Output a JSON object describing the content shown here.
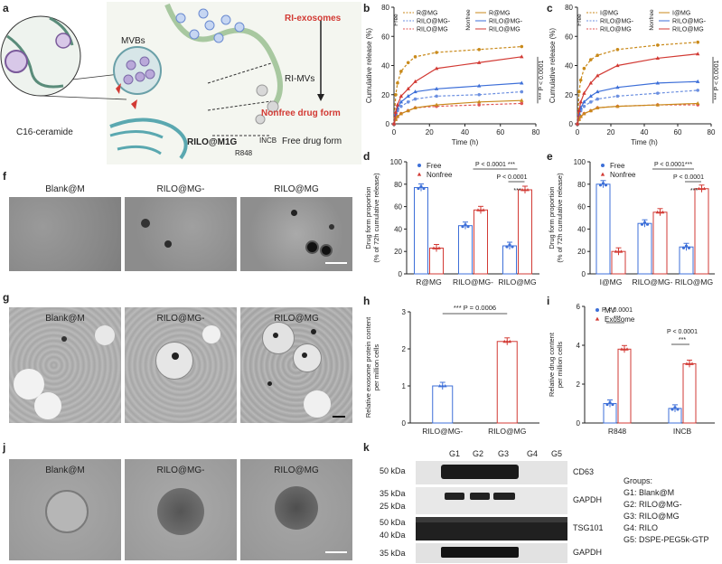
{
  "panel_letters": {
    "a": "a",
    "b": "b",
    "c": "c",
    "d": "d",
    "e": "e",
    "f": "f",
    "g": "g",
    "h": "h",
    "i": "i",
    "j": "j",
    "k": "k"
  },
  "schematic": {
    "c16": "C16-ceramide",
    "mvbs": "MVBs",
    "ri_exosomes": "RI-exosomes",
    "ri_mvs": "RI-MVs",
    "nonfree": "Nonfree drug form",
    "free": "Free drug form",
    "rilo": "RILO@M1G",
    "incb": "INCB",
    "r848": "R848"
  },
  "em": {
    "labels": [
      "Blank@M",
      "RILO@MG-",
      "RILO@MG"
    ]
  },
  "wb": {
    "lanes": [
      "G1",
      "G2",
      "G3",
      "G4",
      "G5"
    ],
    "blots": [
      {
        "name": "CD63",
        "markers": [
          "50 kDa"
        ]
      },
      {
        "name": "GAPDH",
        "markers": [
          "35 kDa",
          "25 kDa"
        ]
      },
      {
        "name": "TSG101",
        "markers": [
          "50 kDa",
          "40 kDa"
        ]
      },
      {
        "name": "GAPDH",
        "markers": [
          "35 kDa"
        ]
      }
    ],
    "groups_title": "Groups:",
    "groups": [
      "G1: Blank@M",
      "G2: RILO@MG-",
      "G3: RILO@MG",
      "G4: RILO",
      "G5: DSPE-PEG5k-GTP"
    ]
  },
  "colors": {
    "red": "#d23a34",
    "blue": "#3d6fd8",
    "orange": "#c98a1b",
    "lightblue": "#6b8fe0",
    "pink": "#e05555"
  },
  "chart_data": [
    {
      "id": "b",
      "type": "line",
      "xlabel": "Time (h)",
      "ylabel": "Cumulative release (%)",
      "xlim": [
        0,
        80
      ],
      "ylim": [
        0,
        80
      ],
      "xticks": [
        0,
        20,
        40,
        60,
        80
      ],
      "yticks": [
        0,
        20,
        40,
        60,
        80
      ],
      "x": [
        0,
        1,
        2,
        4,
        8,
        12,
        24,
        48,
        72
      ],
      "legend_groups": [
        "Free",
        "Nonfree"
      ],
      "annotation": "*** P < 0.0001",
      "series": [
        {
          "name": "R@MG",
          "group": "Free",
          "style": "dash",
          "color": "#c98a1b",
          "values": [
            0,
            20,
            28,
            36,
            42,
            46,
            49,
            51,
            53
          ]
        },
        {
          "name": "RILO@MG-",
          "group": "Free",
          "style": "dash",
          "color": "#6b8fe0",
          "values": [
            0,
            6,
            9,
            12,
            15,
            17,
            19,
            20,
            22
          ]
        },
        {
          "name": "RILO@MG",
          "group": "Free",
          "style": "dash",
          "color": "#e05555",
          "values": [
            0,
            3,
            5,
            7,
            9,
            11,
            12,
            13,
            14
          ]
        },
        {
          "name": "R@MG",
          "group": "Nonfree",
          "style": "solid",
          "color": "#c98a1b",
          "values": [
            0,
            3,
            5,
            7,
            9,
            11,
            13,
            15,
            16
          ]
        },
        {
          "name": "RILO@MG-",
          "group": "Nonfree",
          "style": "solid",
          "color": "#3d6fd8",
          "values": [
            0,
            7,
            11,
            15,
            19,
            22,
            24,
            26,
            28
          ]
        },
        {
          "name": "RILO@MG",
          "group": "Nonfree",
          "style": "solid",
          "color": "#d23a34",
          "values": [
            0,
            8,
            13,
            19,
            24,
            29,
            38,
            42,
            46
          ]
        }
      ]
    },
    {
      "id": "c",
      "type": "line",
      "xlabel": "Time (h)",
      "ylabel": "Cumulative release (%)",
      "xlim": [
        0,
        80
      ],
      "ylim": [
        0,
        80
      ],
      "xticks": [
        0,
        20,
        40,
        60,
        80
      ],
      "yticks": [
        0,
        20,
        40,
        60,
        80
      ],
      "x": [
        0,
        1,
        2,
        4,
        8,
        12,
        24,
        48,
        72
      ],
      "legend_groups": [
        "Free",
        "Nonfree"
      ],
      "annotation": "*** P < 0.0001",
      "series": [
        {
          "name": "I@MG",
          "group": "Free",
          "style": "dash",
          "color": "#c98a1b",
          "values": [
            0,
            22,
            30,
            38,
            44,
            47,
            51,
            54,
            56
          ]
        },
        {
          "name": "RILO@MG-",
          "group": "Free",
          "style": "dash",
          "color": "#6b8fe0",
          "values": [
            0,
            6,
            9,
            12,
            15,
            17,
            19,
            21,
            23
          ]
        },
        {
          "name": "RILO@MG",
          "group": "Free",
          "style": "dash",
          "color": "#e05555",
          "values": [
            0,
            3,
            5,
            7,
            9,
            11,
            12,
            13,
            13
          ]
        },
        {
          "name": "I@MG",
          "group": "Nonfree",
          "style": "solid",
          "color": "#c98a1b",
          "values": [
            0,
            3,
            5,
            7,
            9,
            11,
            12,
            13,
            14
          ]
        },
        {
          "name": "RILO@MG-",
          "group": "Nonfree",
          "style": "solid",
          "color": "#3d6fd8",
          "values": [
            0,
            7,
            11,
            15,
            19,
            22,
            25,
            28,
            29
          ]
        },
        {
          "name": "RILO@MG",
          "group": "Nonfree",
          "style": "solid",
          "color": "#d23a34",
          "values": [
            0,
            9,
            15,
            21,
            28,
            33,
            40,
            45,
            48
          ]
        }
      ]
    },
    {
      "id": "d",
      "type": "bar",
      "ylabel": "Drug form proportion\n(% of 72h cumulative release)",
      "ylim": [
        0,
        100
      ],
      "yticks": [
        0,
        20,
        40,
        60,
        80,
        100
      ],
      "categories": [
        "R@MG",
        "RILO@MG-",
        "RILO@MG"
      ],
      "series": [
        {
          "name": "Free",
          "color": "#3d6fd8",
          "values": [
            77,
            43,
            25
          ]
        },
        {
          "name": "Nonfree",
          "color": "#d23a34",
          "values": [
            23,
            57,
            75
          ]
        }
      ],
      "annotations": [
        "P < 0.0001 ***",
        "P < 0.0001",
        "***"
      ]
    },
    {
      "id": "e",
      "type": "bar",
      "ylabel": "Drug form proportion\n(% of 72h cumulative release)",
      "ylim": [
        0,
        100
      ],
      "yticks": [
        0,
        20,
        40,
        60,
        80,
        100
      ],
      "categories": [
        "I@MG",
        "RILO@MG-",
        "RILO@MG"
      ],
      "series": [
        {
          "name": "Free",
          "color": "#3d6fd8",
          "values": [
            80,
            45,
            24
          ]
        },
        {
          "name": "Nonfree",
          "color": "#d23a34",
          "values": [
            20,
            55,
            76
          ]
        }
      ],
      "annotations": [
        "P < 0.0001***",
        "P < 0.0001",
        "***"
      ]
    },
    {
      "id": "h",
      "type": "bar",
      "ylabel": "Relative exosome protein content\nper million cells",
      "ylim": [
        0,
        3
      ],
      "yticks": [
        0,
        1,
        2,
        3
      ],
      "categories": [
        "RILO@MG-",
        "RILO@MG"
      ],
      "series": [
        {
          "name": "",
          "colors": [
            "#3d6fd8",
            "#d23a34"
          ],
          "values": [
            1.0,
            2.2
          ]
        }
      ],
      "annotations": [
        "*** P = 0.0006"
      ]
    },
    {
      "id": "i",
      "type": "bar",
      "ylabel": "Relative drug content\nper million cells",
      "ylim": [
        0,
        6
      ],
      "yticks": [
        0,
        2,
        4,
        6
      ],
      "categories": [
        "R848",
        "INCB"
      ],
      "series": [
        {
          "name": "MV",
          "color": "#3d6fd8",
          "values": [
            1.0,
            0.75
          ]
        },
        {
          "name": "Exosome",
          "color": "#d23a34",
          "values": [
            3.8,
            3.05
          ]
        }
      ],
      "annotations": [
        "P < 0.0001",
        "***",
        "P < 0.0001",
        "***"
      ]
    }
  ]
}
